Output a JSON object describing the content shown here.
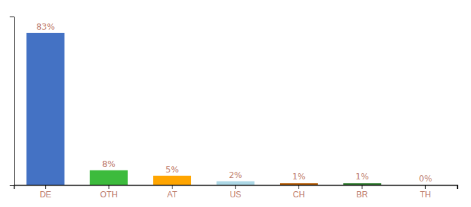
{
  "chart_data": {
    "type": "bar",
    "categories": [
      "DE",
      "OTH",
      "AT",
      "US",
      "CH",
      "BR",
      "TH"
    ],
    "values": [
      83,
      8,
      5,
      2,
      1,
      1,
      0
    ],
    "value_labels": [
      "83%",
      "8%",
      "5%",
      "2%",
      "1%",
      "1%",
      "0%"
    ],
    "colors": [
      "#4472c4",
      "#3dbb3d",
      "#ffa500",
      "#add8e6",
      "#b35900",
      "#2d7a2d",
      "#cccccc"
    ],
    "ylim": [
      0,
      92
    ],
    "data_labels": true,
    "tick_labels": "x",
    "grid": false
  }
}
